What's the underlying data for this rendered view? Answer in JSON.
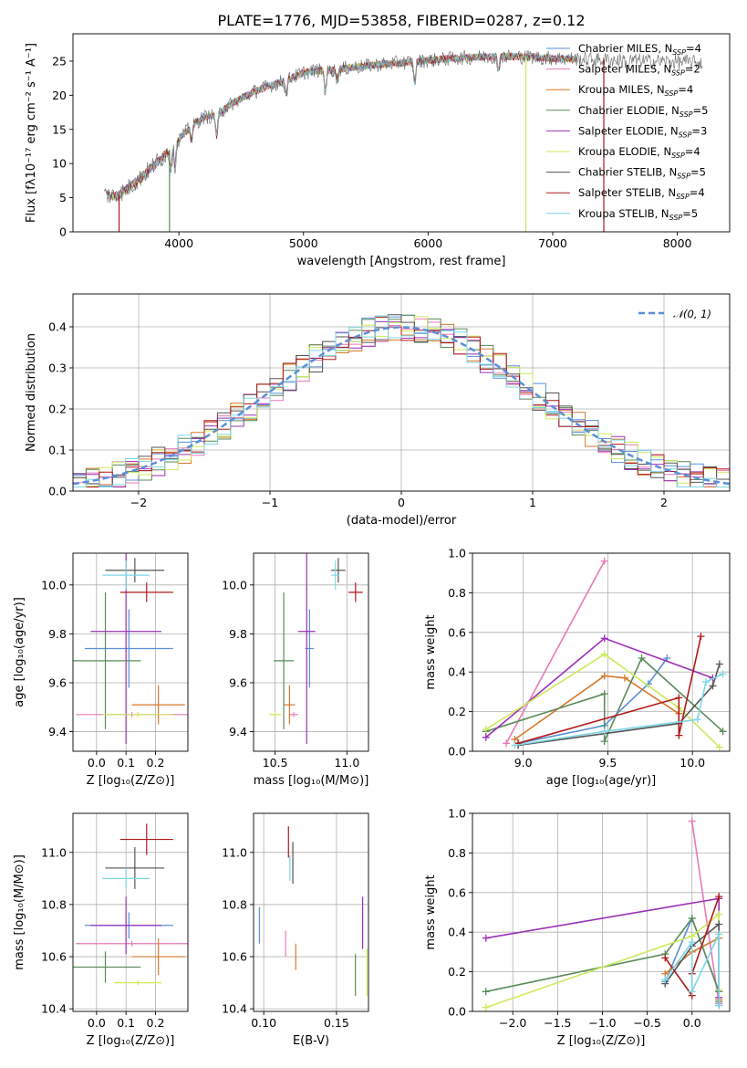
{
  "title": "PLATE=1776, MJD=53858, FIBERID=0287, z=0.12",
  "colors": {
    "c0": "#5b8fd8",
    "c1": "#e87ab8",
    "c2": "#d8782a",
    "c3": "#5a8a5a",
    "c4": "#9b30b8",
    "c5": "#ccea5a",
    "c6": "#555555",
    "c7": "#b01818",
    "c8": "#7dd6e6"
  },
  "chart_data": [
    {
      "id": "spectrum",
      "type": "line",
      "xlabel": "wavelength [Angstrom, rest frame]",
      "ylabel": "Flux [fλ10⁻¹⁷ erg cm⁻² s⁻¹ A⁻¹]",
      "xlim": [
        3150,
        8420
      ],
      "ylim": [
        0,
        29
      ],
      "xticks": [
        4000,
        5000,
        6000,
        7000,
        8000
      ],
      "yticks": [
        0,
        5,
        10,
        15,
        20,
        25
      ],
      "grid": false,
      "legend_position": "top-right",
      "series": [
        {
          "name": "Chabrier MILES, N_SSP=4",
          "color": "c0"
        },
        {
          "name": "Salpeter MILES, N_SSP=2",
          "color": "c1"
        },
        {
          "name": "Kroupa MILES, N_SSP=4",
          "color": "c2"
        },
        {
          "name": "Chabrier ELODIE, N_SSP=5",
          "color": "c3"
        },
        {
          "name": "Salpeter ELODIE, N_SSP=3",
          "color": "c4"
        },
        {
          "name": "Kroupa ELODIE, N_SSP=4",
          "color": "c5"
        },
        {
          "name": "Chabrier STELIB, N_SSP=5",
          "color": "c6"
        },
        {
          "name": "Salpeter STELIB, N_SSP=4",
          "color": "c7"
        },
        {
          "name": "Kroupa STELIB, N_SSP=5",
          "color": "c8"
        }
      ],
      "continuum": {
        "x": [
          3400,
          3500,
          3600,
          3700,
          3800,
          3900,
          4000,
          4100,
          4200,
          4300,
          4400,
          4500,
          4600,
          4700,
          4800,
          4900,
          5000,
          5100,
          5200,
          5400,
          5600,
          5800,
          6000,
          6200,
          6400,
          6600,
          6800,
          7000,
          7200,
          7400,
          7600,
          7800,
          8000,
          8200
        ],
        "y": [
          5.5,
          5.2,
          6.5,
          8.0,
          9.8,
          11.5,
          13.5,
          15.5,
          16.8,
          17.0,
          18.5,
          19.5,
          20.5,
          21.2,
          21.8,
          22.5,
          23.3,
          23.6,
          23.6,
          24.1,
          24.5,
          24.8,
          25.1,
          25.4,
          25.6,
          25.7,
          25.6,
          25.4,
          25.3,
          25.2,
          25.1,
          25.0,
          24.9,
          24.8
        ]
      },
      "range": [
        3400,
        8200
      ],
      "absorption": [
        {
          "x": 3934,
          "depth": 3
        },
        {
          "x": 3969,
          "depth": 3
        },
        {
          "x": 4102,
          "depth": 2
        },
        {
          "x": 4304,
          "depth": 3
        },
        {
          "x": 4861,
          "depth": 2
        },
        {
          "x": 5175,
          "depth": 3
        },
        {
          "x": 5270,
          "depth": 1.5
        },
        {
          "x": 5892,
          "depth": 3
        },
        {
          "x": 6563,
          "depth": 2
        },
        {
          "x": 7600,
          "depth": 1.5
        }
      ],
      "glitches": [
        {
          "x": 3520,
          "color": "c7"
        },
        {
          "x": 3925,
          "color": "c3"
        },
        {
          "x": 6785,
          "color": "c5"
        },
        {
          "x": 7410,
          "color": "c7"
        }
      ]
    },
    {
      "id": "residuals",
      "type": "line",
      "xlabel": "(data-model)/error",
      "ylabel": "Normed distribution",
      "xlim": [
        -2.5,
        2.5
      ],
      "ylim": [
        0,
        0.48
      ],
      "xticks": [
        -2,
        -1,
        0,
        1,
        2
      ],
      "yticks": [
        0,
        0.1,
        0.2,
        0.3,
        0.4
      ],
      "grid": true,
      "legend_position": "top-right",
      "gaussian_label": "𝒩(0, 1)",
      "gaussian_color": "c0",
      "bin_width": 0.1,
      "series_colors": [
        "c0",
        "c1",
        "c2",
        "c3",
        "c4",
        "c5",
        "c6",
        "c7",
        "c8"
      ]
    },
    {
      "id": "age-vs-z",
      "type": "scatter",
      "xlabel": "Z [log₁₀(Z/Z⊙)]",
      "ylabel": "age  [log₁₀(age/yr)]",
      "xlim": [
        -0.08,
        0.31
      ],
      "ylim": [
        9.32,
        10.13
      ],
      "xticks": [
        0.0,
        0.1,
        0.2
      ],
      "yticks": [
        9.4,
        9.6,
        9.8,
        10.0
      ],
      "xticklabels": [
        "0.0",
        "0.1",
        "0.2"
      ],
      "yticklabels": [
        "9.4",
        "9.6",
        "9.8",
        "10.0"
      ],
      "grid": true,
      "points": [
        {
          "x": 0.11,
          "y": 9.74,
          "xerr": 0.15,
          "yerr": 0.16,
          "color": "c0"
        },
        {
          "x": 0.12,
          "y": 9.47,
          "xerr": 0.19,
          "yerr": 0.01,
          "color": "c1"
        },
        {
          "x": 0.21,
          "y": 9.51,
          "xerr": 0.09,
          "yerr": 0.08,
          "color": "c2"
        },
        {
          "x": 0.03,
          "y": 9.69,
          "xerr": 0.12,
          "yerr": 0.28,
          "color": "c3"
        },
        {
          "x": 0.1,
          "y": 9.81,
          "xerr": 0.12,
          "yerr": 0.46,
          "color": "c4"
        },
        {
          "x": 0.14,
          "y": 9.47,
          "xerr": 0.12,
          "yerr": 0.01,
          "color": "c5"
        },
        {
          "x": 0.13,
          "y": 10.06,
          "xerr": 0.1,
          "yerr": 0.05,
          "color": "c6"
        },
        {
          "x": 0.17,
          "y": 9.97,
          "xerr": 0.09,
          "yerr": 0.04,
          "color": "c7"
        },
        {
          "x": 0.1,
          "y": 10.04,
          "xerr": 0.08,
          "yerr": 0.06,
          "color": "c8"
        }
      ]
    },
    {
      "id": "age-vs-mass",
      "type": "scatter",
      "xlabel": "mass [log₁₀(M/M⊙)]",
      "ylabel": "",
      "xlim": [
        10.35,
        11.15
      ],
      "ylim": [
        9.32,
        10.13
      ],
      "xticks": [
        10.5,
        11.0
      ],
      "yticks": [
        9.4,
        9.6,
        9.8,
        10.0
      ],
      "xticklabels": [
        "10.5",
        "11.0"
      ],
      "yticklabels": [
        "9.4",
        "9.6",
        "9.8",
        "10.0"
      ],
      "grid": true,
      "points": [
        {
          "x": 10.74,
          "y": 9.74,
          "xerr": 0.03,
          "yerr": 0.16,
          "color": "c0"
        },
        {
          "x": 10.63,
          "y": 9.47,
          "xerr": 0.03,
          "yerr": 0.01,
          "color": "c1"
        },
        {
          "x": 10.6,
          "y": 9.51,
          "xerr": 0.04,
          "yerr": 0.08,
          "color": "c2"
        },
        {
          "x": 10.56,
          "y": 9.69,
          "xerr": 0.07,
          "yerr": 0.28,
          "color": "c3"
        },
        {
          "x": 10.72,
          "y": 9.81,
          "xerr": 0.06,
          "yerr": 0.46,
          "color": "c4"
        },
        {
          "x": 10.5,
          "y": 9.47,
          "xerr": 0.04,
          "yerr": 0.01,
          "color": "c5"
        },
        {
          "x": 10.94,
          "y": 10.06,
          "xerr": 0.05,
          "yerr": 0.05,
          "color": "c6"
        },
        {
          "x": 11.06,
          "y": 9.97,
          "xerr": 0.05,
          "yerr": 0.04,
          "color": "c7"
        },
        {
          "x": 10.92,
          "y": 10.04,
          "xerr": 0.03,
          "yerr": 0.06,
          "color": "c8"
        }
      ]
    },
    {
      "id": "weight-vs-age",
      "type": "line",
      "xlabel": "age  [log₁₀(age/yr)]",
      "ylabel": "mass weight",
      "xlim": [
        8.7,
        10.22
      ],
      "ylim": [
        0,
        1.0
      ],
      "xticks": [
        9.0,
        9.5,
        10.0
      ],
      "yticks": [
        0,
        0.2,
        0.4,
        0.6,
        0.8,
        1.0
      ],
      "xticklabels": [
        "9.0",
        "9.5",
        "10.0"
      ],
      "yticklabels": [
        "0.0",
        "0.2",
        "0.4",
        "0.6",
        "0.8",
        "1.0"
      ],
      "grid": true,
      "series": [
        {
          "color": "c0",
          "x": [
            8.97,
            9.48,
            9.74,
            9.85
          ],
          "y": [
            0.04,
            0.13,
            0.34,
            0.47
          ]
        },
        {
          "color": "c1",
          "x": [
            8.9,
            9.48
          ],
          "y": [
            0.04,
            0.96
          ]
        },
        {
          "color": "c2",
          "x": [
            8.95,
            9.48,
            9.6,
            9.92
          ],
          "y": [
            0.06,
            0.38,
            0.37,
            0.19
          ]
        },
        {
          "color": "c3",
          "x": [
            8.78,
            9.48,
            9.48,
            9.7,
            10.18
          ],
          "y": [
            0.1,
            0.29,
            0.05,
            0.47,
            0.1
          ]
        },
        {
          "color": "c4",
          "x": [
            8.78,
            9.48,
            10.12
          ],
          "y": [
            0.07,
            0.57,
            0.37
          ]
        },
        {
          "color": "c5",
          "x": [
            8.78,
            9.48,
            9.92,
            10.16
          ],
          "y": [
            0.11,
            0.49,
            0.22,
            0.02
          ]
        },
        {
          "color": "c6",
          "x": [
            8.97,
            9.92,
            10.12,
            10.16
          ],
          "y": [
            0.03,
            0.14,
            0.33,
            0.44
          ]
        },
        {
          "color": "c7",
          "x": [
            8.97,
            9.92,
            9.92,
            10.05
          ],
          "y": [
            0.04,
            0.27,
            0.08,
            0.58
          ]
        },
        {
          "color": "c8",
          "x": [
            8.95,
            9.48,
            10.03,
            10.08,
            10.18
          ],
          "y": [
            0.03,
            0.1,
            0.16,
            0.35,
            0.39
          ]
        }
      ]
    },
    {
      "id": "mass-vs-z",
      "type": "scatter",
      "xlabel": "Z [log₁₀(Z/Z⊙)]",
      "ylabel": "mass [log₁₀(M/M⊙)]",
      "xlim": [
        -0.08,
        0.31
      ],
      "ylim": [
        10.39,
        11.15
      ],
      "xticks": [
        0.0,
        0.1,
        0.2
      ],
      "yticks": [
        10.4,
        10.6,
        10.8,
        11.0
      ],
      "xticklabels": [
        "0.0",
        "0.1",
        "0.2"
      ],
      "yticklabels": [
        "10.4",
        "10.6",
        "10.8",
        "11.0"
      ],
      "grid": true,
      "points": [
        {
          "x": 0.11,
          "y": 10.72,
          "xerr": 0.15,
          "yerr": 0.05,
          "color": "c0"
        },
        {
          "x": 0.12,
          "y": 10.65,
          "xerr": 0.19,
          "yerr": 0.01,
          "color": "c1"
        },
        {
          "x": 0.21,
          "y": 10.6,
          "xerr": 0.09,
          "yerr": 0.07,
          "color": "c2"
        },
        {
          "x": 0.03,
          "y": 10.56,
          "xerr": 0.12,
          "yerr": 0.06,
          "color": "c3"
        },
        {
          "x": 0.1,
          "y": 10.72,
          "xerr": 0.12,
          "yerr": 0.11,
          "color": "c4"
        },
        {
          "x": 0.14,
          "y": 10.5,
          "xerr": 0.08,
          "yerr": 0.01,
          "color": "c5"
        },
        {
          "x": 0.13,
          "y": 10.94,
          "xerr": 0.1,
          "yerr": 0.08,
          "color": "c6"
        },
        {
          "x": 0.17,
          "y": 11.05,
          "xerr": 0.09,
          "yerr": 0.06,
          "color": "c7"
        },
        {
          "x": 0.1,
          "y": 10.9,
          "xerr": 0.08,
          "yerr": 0.04,
          "color": "c8"
        }
      ]
    },
    {
      "id": "mass-vs-ebv",
      "type": "scatter",
      "xlabel": "E(B-V)",
      "ylabel": "",
      "xlim": [
        0.093,
        0.172
      ],
      "ylim": [
        10.39,
        11.15
      ],
      "xticks": [
        0.1,
        0.15
      ],
      "yticks": [
        10.4,
        10.6,
        10.8,
        11.0
      ],
      "xticklabels": [
        "0.10",
        "0.15"
      ],
      "yticklabels": [
        "10.4",
        "10.6",
        "10.8",
        "11.0"
      ],
      "grid": true,
      "points": [
        {
          "x": 0.097,
          "y": 10.72,
          "yerr": 0.07,
          "color": "c0"
        },
        {
          "x": 0.115,
          "y": 10.65,
          "yerr": 0.05,
          "color": "c1"
        },
        {
          "x": 0.122,
          "y": 10.6,
          "yerr": 0.05,
          "color": "c2"
        },
        {
          "x": 0.163,
          "y": 10.53,
          "yerr": 0.08,
          "color": "c3"
        },
        {
          "x": 0.168,
          "y": 10.73,
          "yerr": 0.1,
          "color": "c4"
        },
        {
          "x": 0.171,
          "y": 10.54,
          "yerr": 0.09,
          "color": "c5"
        },
        {
          "x": 0.12,
          "y": 10.96,
          "yerr": 0.08,
          "color": "c6"
        },
        {
          "x": 0.117,
          "y": 11.04,
          "yerr": 0.06,
          "color": "c7"
        },
        {
          "x": 0.118,
          "y": 10.94,
          "yerr": 0.05,
          "color": "c8"
        }
      ]
    },
    {
      "id": "weight-vs-z",
      "type": "line",
      "xlabel": "Z [log₁₀(Z/Z⊙)]",
      "ylabel": "mass weight",
      "xlim": [
        -2.45,
        0.42
      ],
      "ylim": [
        0,
        1.0
      ],
      "xticks": [
        -2.0,
        -1.5,
        -1.0,
        -0.5,
        0.0
      ],
      "yticks": [
        0,
        0.2,
        0.4,
        0.6,
        0.8,
        1.0
      ],
      "xticklabels": [
        "−2.0",
        "−1.5",
        "−1.0",
        "−0.5",
        "0.0"
      ],
      "yticklabels": [
        "0.0",
        "0.2",
        "0.4",
        "0.6",
        "0.8",
        "1.0"
      ],
      "grid": true,
      "series": [
        {
          "color": "c0",
          "x": [
            -0.3,
            0.0,
            0.3,
            0.3
          ],
          "y": [
            0.15,
            0.47,
            0.1,
            0.04
          ]
        },
        {
          "color": "c1",
          "x": [
            0.0,
            0.3
          ],
          "y": [
            0.96,
            0.04
          ]
        },
        {
          "color": "c2",
          "x": [
            -0.3,
            0.0,
            0.3,
            0.3
          ],
          "y": [
            0.19,
            0.3,
            0.37,
            0.06
          ]
        },
        {
          "color": "c3",
          "x": [
            -2.3,
            -0.3,
            0.0,
            0.3,
            0.3
          ],
          "y": [
            0.1,
            0.29,
            0.47,
            0.1,
            0.05
          ]
        },
        {
          "color": "c4",
          "x": [
            -2.3,
            0.3,
            0.3
          ],
          "y": [
            0.37,
            0.57,
            0.07
          ]
        },
        {
          "color": "c5",
          "x": [
            -2.3,
            0.0,
            0.3,
            0.3
          ],
          "y": [
            0.02,
            0.38,
            0.49,
            0.11
          ]
        },
        {
          "color": "c6",
          "x": [
            -0.3,
            0.0,
            0.3,
            0.3
          ],
          "y": [
            0.14,
            0.33,
            0.44,
            0.03
          ]
        },
        {
          "color": "c7",
          "x": [
            -0.3,
            0.0,
            0.0,
            0.3
          ],
          "y": [
            0.27,
            0.08,
            0.19,
            0.58
          ]
        },
        {
          "color": "c8",
          "x": [
            -0.3,
            0.0,
            0.0,
            0.3,
            0.3
          ],
          "y": [
            0.16,
            0.35,
            0.1,
            0.39,
            0.03
          ]
        }
      ]
    }
  ]
}
